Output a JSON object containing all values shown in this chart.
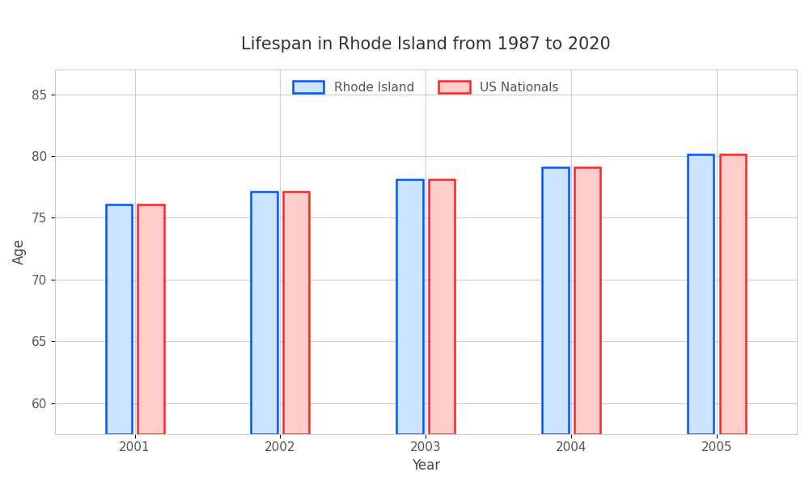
{
  "title": "Lifespan in Rhode Island from 1987 to 2020",
  "xlabel": "Year",
  "ylabel": "Age",
  "years": [
    2001,
    2002,
    2003,
    2004,
    2005
  ],
  "rhode_island": [
    76.1,
    77.1,
    78.1,
    79.1,
    80.1
  ],
  "us_nationals": [
    76.1,
    77.1,
    78.1,
    79.1,
    80.1
  ],
  "bar_width": 0.18,
  "ymin": 57.5,
  "ylim": [
    57.5,
    87
  ],
  "yticks": [
    60,
    65,
    70,
    75,
    80,
    85
  ],
  "ri_face_color": "#cce4ff",
  "ri_edge_color": "#0055ff",
  "us_face_color": "#ffcccc",
  "us_edge_color": "#ff2222",
  "background_color": "#ffffff",
  "grid_color": "#cccccc",
  "title_fontsize": 15,
  "axis_label_fontsize": 12,
  "tick_fontsize": 11,
  "legend_label_ri": "Rhode Island",
  "legend_label_us": "US Nationals"
}
